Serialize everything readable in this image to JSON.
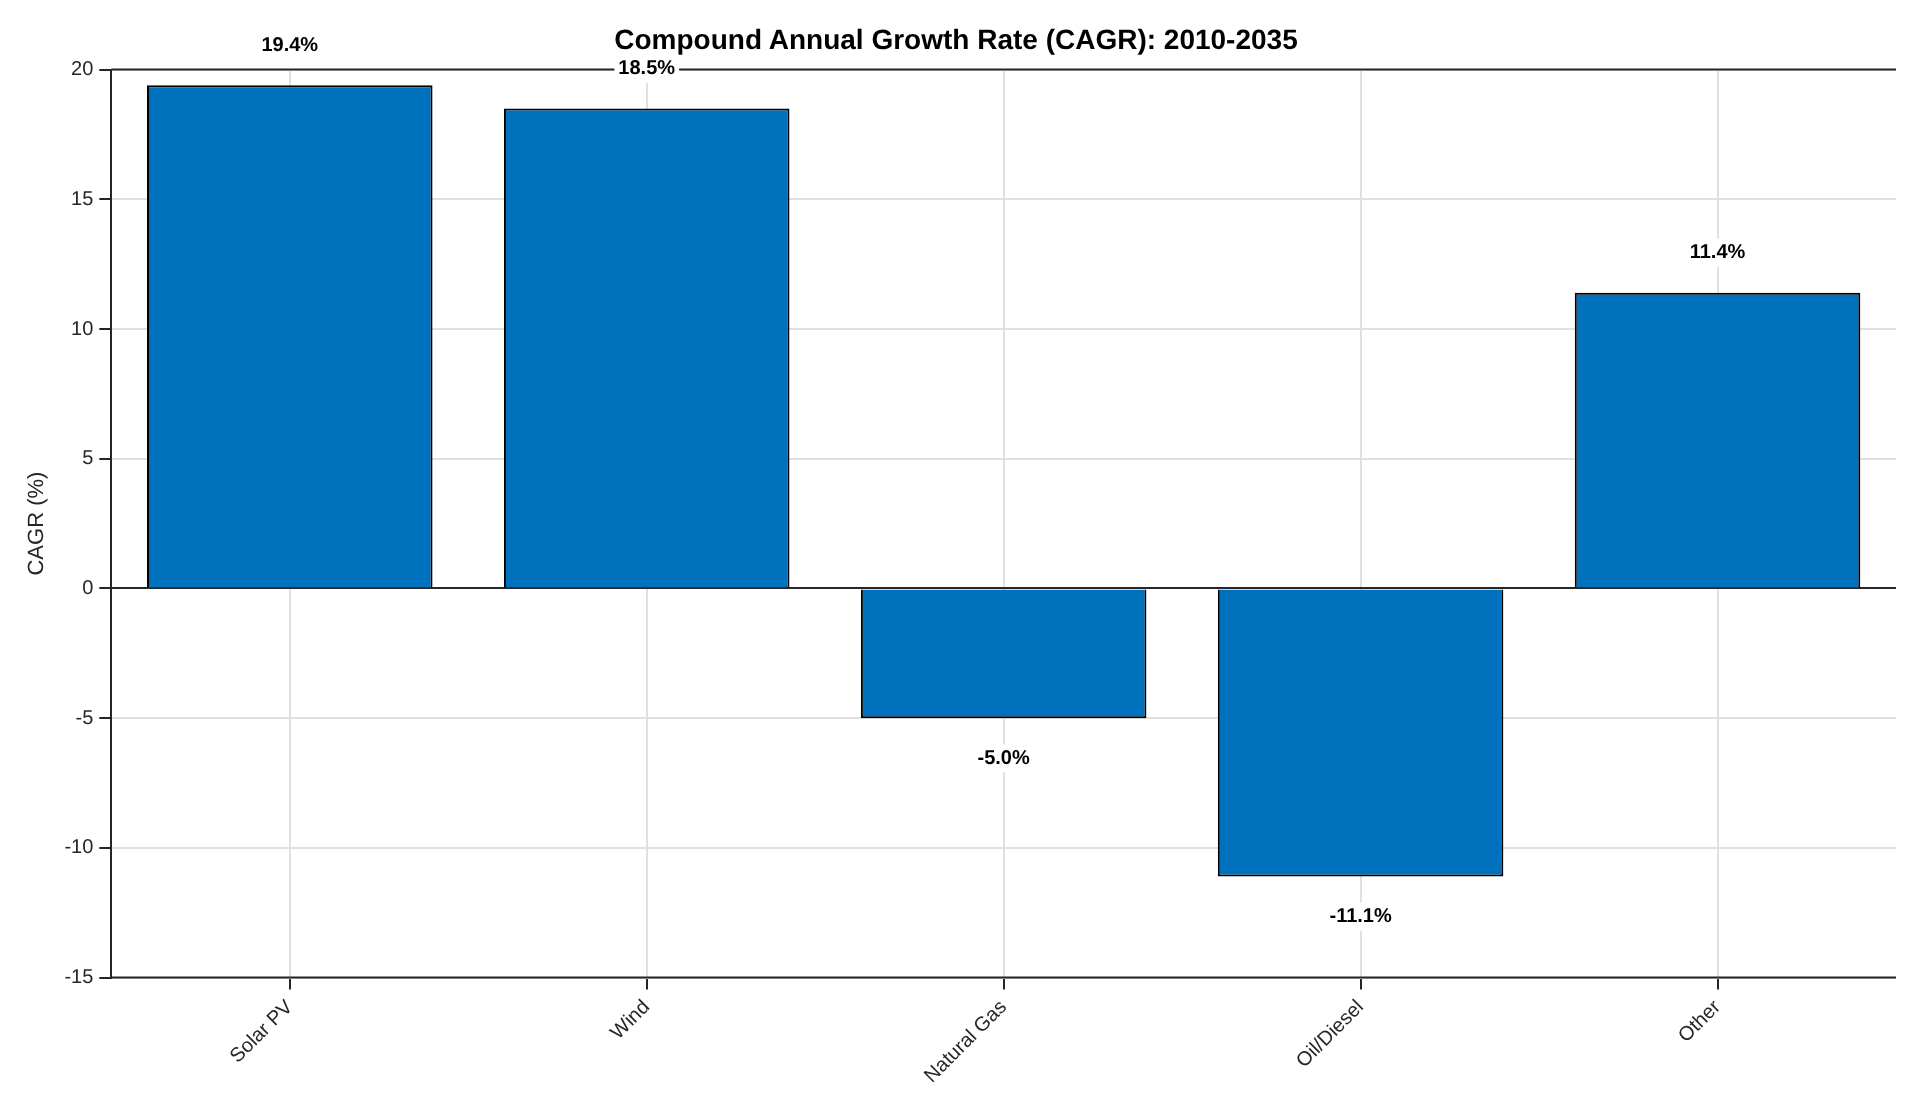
{
  "chart_data": {
    "type": "bar",
    "title": "Compound Annual Growth Rate (CAGR): 2010-2035",
    "ylabel": "CAGR (%)",
    "categories": [
      "Solar PV",
      "Wind",
      "Natural Gas",
      "Oil/Diesel",
      "Other"
    ],
    "values": [
      19.4,
      18.5,
      -5.0,
      -11.1,
      11.4
    ],
    "value_labels": [
      "19.4%",
      "18.5%",
      "-5.0%",
      "-11.1%",
      "11.4%"
    ],
    "color": "#0072bd",
    "ylim": [
      -15,
      20
    ],
    "yticks": [
      -15,
      -10,
      -5,
      0,
      5,
      10,
      15,
      20
    ],
    "grid": true
  }
}
